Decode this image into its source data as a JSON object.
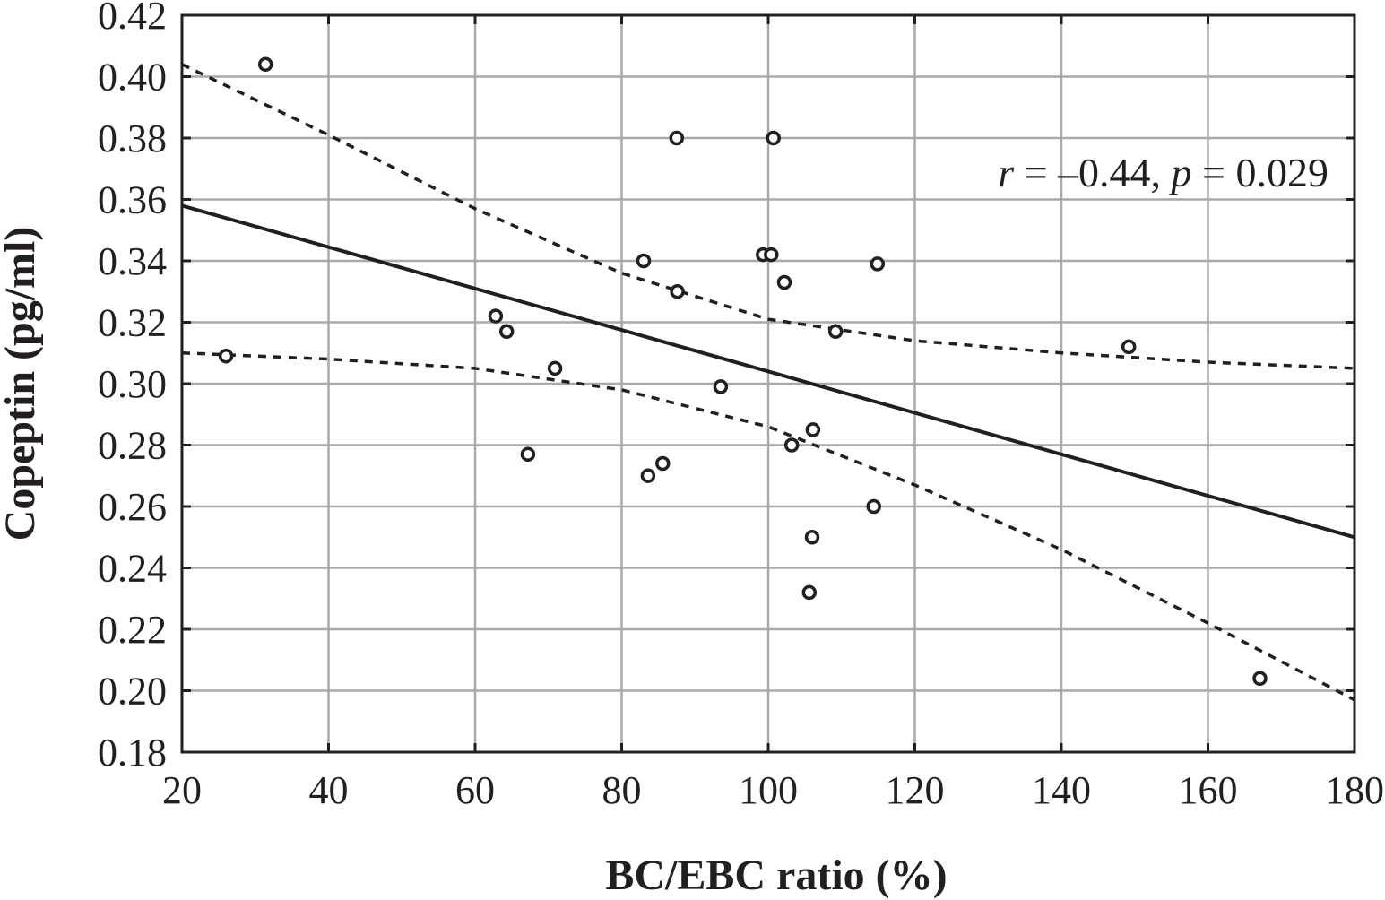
{
  "chart_data": {
    "type": "scatter",
    "xlabel": "BC/EBC ratio (%)",
    "ylabel": "Copeptin (pg/ml)",
    "xlim": [
      20,
      180
    ],
    "ylim": [
      0.18,
      0.42
    ],
    "x_ticks": [
      "20",
      "40",
      "60",
      "80",
      "100",
      "120",
      "140",
      "160",
      "180"
    ],
    "y_ticks": [
      "0.18",
      "0.20",
      "0.22",
      "0.24",
      "0.26",
      "0.28",
      "0.30",
      "0.32",
      "0.34",
      "0.36",
      "0.38",
      "0.40",
      "0.42"
    ],
    "grid": true,
    "annotation": {
      "r_symbol": "r",
      "r_text": " = –0.44, ",
      "p_symbol": "p",
      "p_text": " = 0.029"
    },
    "points": [
      {
        "x": 26.0,
        "y": 0.309
      },
      {
        "x": 31.4,
        "y": 0.404
      },
      {
        "x": 62.8,
        "y": 0.322
      },
      {
        "x": 64.3,
        "y": 0.317
      },
      {
        "x": 67.2,
        "y": 0.277
      },
      {
        "x": 70.9,
        "y": 0.305
      },
      {
        "x": 83.0,
        "y": 0.34
      },
      {
        "x": 83.6,
        "y": 0.27
      },
      {
        "x": 85.6,
        "y": 0.274
      },
      {
        "x": 87.5,
        "y": 0.38
      },
      {
        "x": 87.6,
        "y": 0.33
      },
      {
        "x": 93.5,
        "y": 0.299
      },
      {
        "x": 99.3,
        "y": 0.342
      },
      {
        "x": 100.4,
        "y": 0.342
      },
      {
        "x": 100.7,
        "y": 0.38
      },
      {
        "x": 102.2,
        "y": 0.333
      },
      {
        "x": 103.2,
        "y": 0.28
      },
      {
        "x": 105.6,
        "y": 0.232
      },
      {
        "x": 106.0,
        "y": 0.25
      },
      {
        "x": 106.1,
        "y": 0.285
      },
      {
        "x": 109.2,
        "y": 0.317
      },
      {
        "x": 114.4,
        "y": 0.26
      },
      {
        "x": 114.9,
        "y": 0.339
      },
      {
        "x": 149.2,
        "y": 0.312
      },
      {
        "x": 167.1,
        "y": 0.204
      }
    ],
    "regression_line": {
      "x": [
        20,
        180
      ],
      "y": [
        0.358,
        0.25
      ]
    },
    "confidence_upper": {
      "x": [
        20,
        40,
        60,
        80,
        100,
        120,
        140,
        160,
        180
      ],
      "y": [
        0.404,
        0.381,
        0.357,
        0.336,
        0.321,
        0.314,
        0.31,
        0.307,
        0.305
      ]
    },
    "confidence_lower": {
      "x": [
        20,
        40,
        60,
        80,
        100,
        120,
        140,
        160,
        180
      ],
      "y": [
        0.31,
        0.308,
        0.305,
        0.298,
        0.286,
        0.267,
        0.246,
        0.222,
        0.197
      ]
    }
  }
}
